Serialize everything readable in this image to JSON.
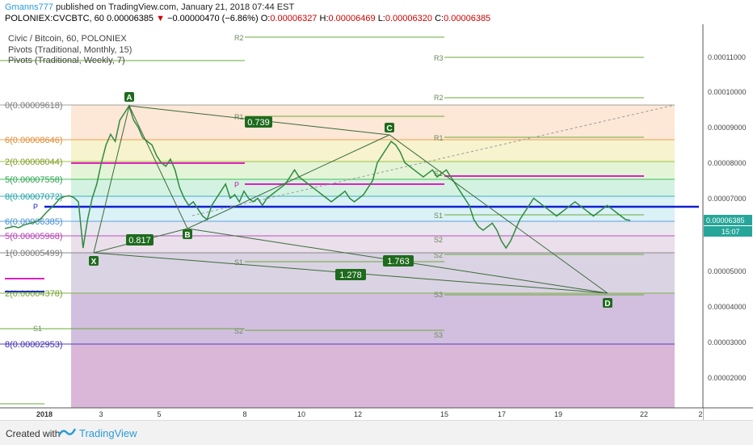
{
  "header": {
    "author": "Gmanns777",
    "published": "published on TradingView.com, January 21, 2018 07:44 EST",
    "symbol": "POLONIEX:CVCBTC, 60",
    "price": "0.00006385",
    "change": "−0.00000470 (−6.86%)",
    "o_label": "O:",
    "o_value": "0.00006327",
    "h_label": "H:",
    "h_value": "0.00006469",
    "l_label": "L:",
    "l_value": "0.00006320",
    "c_label": "C:",
    "c_value": "0.00006385"
  },
  "legend": {
    "title": "Civic / Bitcoin, 60, POLONIEX",
    "monthly": "Pivots (Traditional, Monthly, 15)",
    "weekly": "Pivots (Traditional, Weekly, 7)"
  },
  "colors": {
    "bull": "#26a69a",
    "bear": "#8b2a2a",
    "pivot": "#2030c8",
    "magenta": "#e020c0",
    "harmonic": "#1a5a1a",
    "level": "#6aaa3a"
  },
  "pivot_labels": [
    "R2",
    "R3",
    "R2",
    "R1",
    "R1",
    "P",
    "P",
    "S1",
    "S1",
    "S2",
    "S1",
    "S3",
    "S2",
    "S1",
    "S2",
    "S3"
  ],
  "fib_labels": [
    "0(0.00009618)",
    "6(0.00008646)",
    "2(0.00008044)",
    "5(0.00007558)",
    "8(0.00007072)",
    "6(0.00006385)",
    "5(0.00005968)",
    "1(0.00005499)",
    "2(0.00004378)",
    "8(0.00002953)"
  ],
  "pattern": {
    "points": [
      "A",
      "X",
      "B",
      "C",
      "D"
    ],
    "ratios": [
      "0.739",
      "0.817",
      "1.763",
      "1.278"
    ]
  },
  "chart_data": {
    "type": "line",
    "x_ticks": [
      "2018",
      "3",
      "5",
      "8",
      "10",
      "12",
      "15",
      "17",
      "19",
      "22",
      "2"
    ],
    "y_ticks": [
      "0.00011000",
      "0.00010000",
      "0.00009000",
      "0.00008000",
      "0.00007000",
      "0.00005000",
      "0.00004000",
      "0.00003000",
      "0.00002000"
    ],
    "y_range": [
      1.1e-05,
      0.000119
    ],
    "price_tag": "0.00006385",
    "time_tag": "15:07",
    "series": [
      {
        "values": [
          6.15e-05,
          6.18e-05,
          6.21e-05,
          6.17e-05,
          6.24e-05,
          6.28e-05,
          6.31e-05,
          6.35e-05,
          6.45e-05,
          6.6e-05,
          6.72e-05,
          6.85e-05,
          7e-05,
          7.05e-05,
          7.07e-05,
          7.02e-05,
          6.9e-05,
          5.6e-05,
          6.4e-05,
          7e-05,
          7.4e-05,
          8e-05,
          8.5e-05,
          8.8e-05,
          8.6e-05,
          9.2e-05,
          9.4e-05,
          9.6e-05,
          9.2e-05,
          9e-05,
          8.7e-05,
          8.6e-05,
          8.5e-05,
          8.2e-05,
          8e-05,
          7.9e-05,
          8.1e-05,
          7.8e-05,
          7.3e-05,
          7e-05,
          6.8e-05,
          6.9e-05,
          6.7e-05,
          6.5e-05,
          6.4e-05,
          6.8e-05,
          7e-05,
          7.2e-05,
          7.4e-05,
          7e-05,
          7.1e-05,
          6.9e-05,
          7.2e-05,
          7e-05,
          6.9e-05,
          7e-05,
          6.8e-05,
          7e-05,
          7.1e-05,
          7.2e-05,
          7.3e-05,
          7.4e-05,
          7.6e-05,
          7.8e-05,
          7.6e-05,
          7.5e-05,
          7.4e-05,
          7.3e-05,
          7.2e-05,
          7.1e-05,
          7e-05,
          6.9e-05,
          7e-05,
          7.1e-05,
          7.2e-05,
          7e-05,
          6.9e-05,
          7e-05,
          7.1e-05,
          7.3e-05,
          7.5e-05,
          8e-05,
          8.2e-05,
          8.4e-05,
          8.6e-05,
          8.5e-05,
          8.3e-05,
          8e-05,
          7.9e-05,
          7.8e-05,
          7.7e-05,
          7.6e-05,
          7.7e-05,
          7.8e-05,
          7.6e-05,
          7.7e-05,
          7.8e-05,
          7.6e-05,
          7.4e-05,
          7.2e-05,
          7e-05,
          6.8e-05,
          6.4e-05,
          6.2e-05,
          6.1e-05,
          6.2e-05,
          6.3e-05,
          6.1e-05,
          5.8e-05,
          5.6e-05,
          5.8e-05,
          6.1e-05,
          6.4e-05,
          6.6e-05,
          6.8e-05,
          7e-05,
          6.9e-05,
          6.8e-05,
          6.7e-05,
          6.6e-05,
          6.5e-05,
          6.6e-05,
          6.7e-05,
          6.8e-05,
          6.9e-05,
          6.8e-05,
          6.7e-05,
          6.6e-05,
          6.5e-05,
          6.6e-05,
          6.7e-05,
          6.8e-05,
          6.7e-05,
          6.6e-05,
          6.5e-05,
          6.4e-05,
          6.38e-05
        ]
      }
    ]
  },
  "footer": {
    "created": "Created with",
    "brand": "TradingView"
  }
}
